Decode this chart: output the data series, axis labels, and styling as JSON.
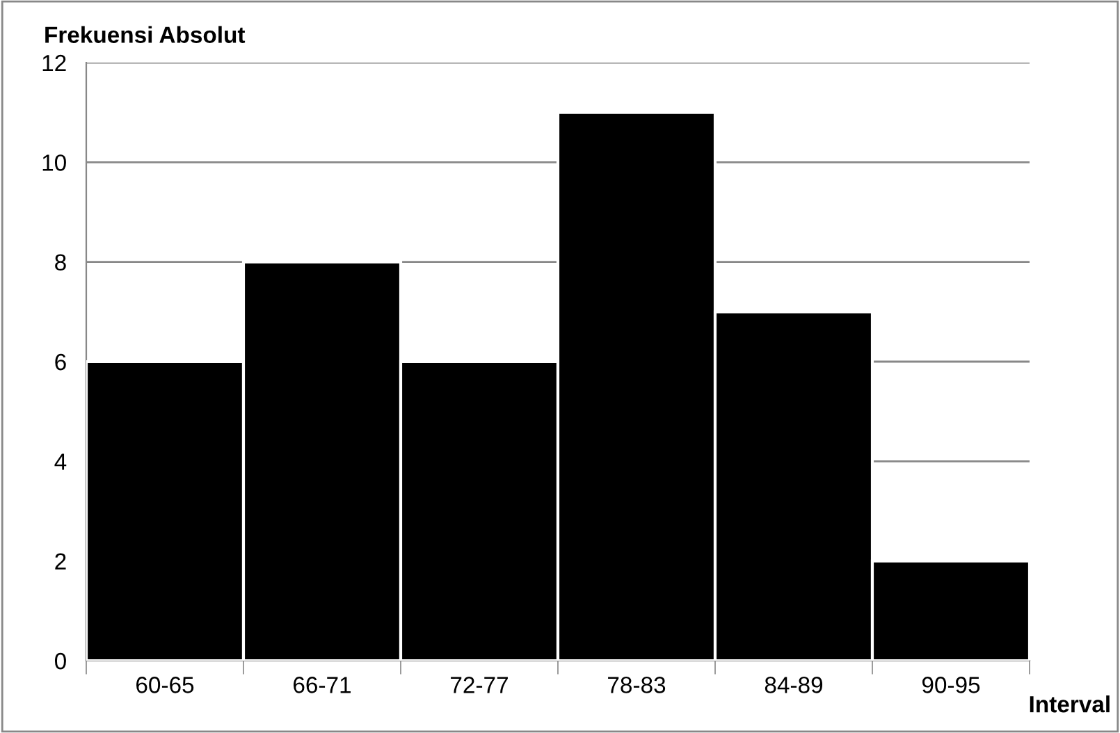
{
  "chart_data": {
    "type": "bar",
    "xlabel": "Interval",
    "ylabel": "Frekuensi Absolut",
    "categories": [
      "60-65",
      "66-71",
      "72-77",
      "78-83",
      "84-89",
      "90-95"
    ],
    "values": [
      6,
      8,
      6,
      11,
      7,
      2
    ],
    "color": "#000000",
    "ylim": [
      0,
      12
    ],
    "yticks": [
      0,
      2,
      4,
      6,
      8,
      10,
      12
    ],
    "grid": "y",
    "legend": false
  }
}
